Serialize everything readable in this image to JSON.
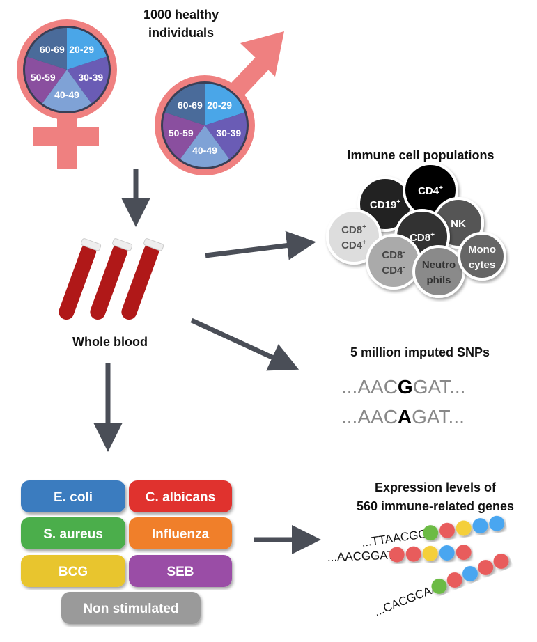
{
  "title": {
    "line1": "1000 healthy",
    "line2": "individuals"
  },
  "age_groups": [
    {
      "label": "20-29",
      "color": "#4aa6e8"
    },
    {
      "label": "30-39",
      "color": "#6a5cb5"
    },
    {
      "label": "40-49",
      "color": "#7fa2d6"
    },
    {
      "label": "50-59",
      "color": "#8a4f9f"
    },
    {
      "label": "60-69",
      "color": "#4a6b9a"
    }
  ],
  "ring_color": "#ef8080",
  "whole_blood": "Whole blood",
  "immune": {
    "title": "Immune cell populations",
    "cells": [
      {
        "label": "CD19",
        "sup": "+",
        "color": "#222222",
        "text": "#ffffff"
      },
      {
        "label": "CD4",
        "sup": "+",
        "color": "#000000",
        "text": "#ffffff"
      },
      {
        "label": "NK",
        "sup": "",
        "color": "#555555",
        "text": "#ffffff"
      },
      {
        "label": "CD8",
        "sup": "+",
        "color": "#333333",
        "text": "#ffffff"
      },
      {
        "label": "CD8",
        "sup": "+",
        "label2": "CD4",
        "sup2": "+",
        "color": "#dddddd",
        "text": "#555555"
      },
      {
        "label": "CD8",
        "sup": "-",
        "label2": "CD4",
        "sup2": "-",
        "color": "#aaaaaa",
        "text": "#444444"
      },
      {
        "label": "Neutro",
        "label2": "phils",
        "color": "#8a8a8a",
        "text": "#333333"
      },
      {
        "label": "Mono",
        "label2": "cytes",
        "color": "#666666",
        "text": "#ffffff"
      }
    ]
  },
  "snps": {
    "title": "5 million imputed SNPs",
    "seq1": {
      "pre": "...AAC",
      "alt": "G",
      "post": "GAT..."
    },
    "seq2": {
      "pre": "...AAC",
      "alt": "A",
      "post": "GAT..."
    }
  },
  "stimuli": [
    {
      "label": "E. coli",
      "color": "#3a7bbf"
    },
    {
      "label": "C. albicans",
      "color": "#e0302f"
    },
    {
      "label": "S. aureus",
      "color": "#4cae4c"
    },
    {
      "label": "Influenza",
      "color": "#f07f2a"
    },
    {
      "label": "BCG",
      "color": "#e8c52e"
    },
    {
      "label": "SEB",
      "color": "#9a4ea6"
    },
    {
      "label": "Non stimulated",
      "color": "#9a9a9a"
    }
  ],
  "expression": {
    "title1": "Expression levels of",
    "title2": "560 immune-related genes",
    "seqs": [
      {
        "text": "...TTAACGG",
        "beads": [
          "#6cbb45",
          "#e85b5b",
          "#f4cf3a",
          "#4aa6f0",
          "#4aa6f0"
        ]
      },
      {
        "text": "...AACGGAT",
        "beads": [
          "#e85b5b",
          "#e85b5b",
          "#f4cf3a",
          "#4aa6f0",
          "#e85b5b"
        ]
      },
      {
        "text": "...CACGCAA",
        "beads": [
          "#6cbb45",
          "#e85b5b",
          "#4aa6f0",
          "#e85b5b",
          "#e85b5b"
        ]
      }
    ]
  }
}
